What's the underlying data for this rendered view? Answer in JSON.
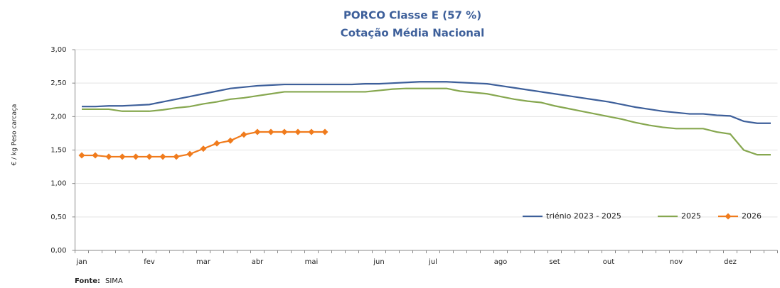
{
  "chart_data": {
    "type": "line",
    "title": "PORCO Classe E (57 %)",
    "subtitle": "Cotação Média Nacional",
    "y_label": "€ / kg Peso carcaça",
    "source_label": "Fonte:",
    "source": "SIMA",
    "categories": [
      "jan",
      null,
      null,
      null,
      null,
      "fev",
      null,
      null,
      null,
      "mar",
      null,
      null,
      null,
      "abr",
      null,
      null,
      null,
      "mai",
      null,
      null,
      null,
      null,
      "jun",
      null,
      null,
      null,
      "jul",
      null,
      null,
      null,
      null,
      "ago",
      null,
      null,
      null,
      "set",
      null,
      null,
      null,
      "out",
      null,
      null,
      null,
      null,
      "nov",
      null,
      null,
      null,
      "dez",
      null,
      null,
      null
    ],
    "ylim": [
      0,
      3
    ],
    "yticks": [
      {
        "value": 0,
        "label": "0,00"
      },
      {
        "value": 0.5,
        "label": "0,50"
      },
      {
        "value": 1,
        "label": "1,00"
      },
      {
        "value": 1.5,
        "label": "1,50"
      },
      {
        "value": 2,
        "label": "2,00"
      },
      {
        "value": 2.5,
        "label": "2,50"
      },
      {
        "value": 3,
        "label": "3,00"
      }
    ],
    "grid": true,
    "legend": "bottom-right",
    "series": [
      {
        "name": "triénio 2023 - 2025",
        "color": "#3d5f9a",
        "marker": false,
        "values": [
          2.15,
          2.15,
          2.16,
          2.16,
          2.17,
          2.18,
          2.22,
          2.26,
          2.3,
          2.34,
          2.38,
          2.42,
          2.44,
          2.46,
          2.47,
          2.48,
          2.48,
          2.48,
          2.48,
          2.48,
          2.48,
          2.49,
          2.49,
          2.5,
          2.51,
          2.52,
          2.52,
          2.52,
          2.51,
          2.5,
          2.49,
          2.46,
          2.43,
          2.4,
          2.37,
          2.34,
          2.31,
          2.28,
          2.25,
          2.22,
          2.18,
          2.14,
          2.11,
          2.08,
          2.06,
          2.04,
          2.04,
          2.02,
          2.01,
          1.93,
          1.9,
          1.9
        ]
      },
      {
        "name": "2025",
        "color": "#86a74f",
        "marker": false,
        "values": [
          2.11,
          2.11,
          2.11,
          2.08,
          2.08,
          2.08,
          2.1,
          2.13,
          2.15,
          2.19,
          2.22,
          2.26,
          2.28,
          2.31,
          2.34,
          2.37,
          2.37,
          2.37,
          2.37,
          2.37,
          2.37,
          2.37,
          2.39,
          2.41,
          2.42,
          2.42,
          2.42,
          2.42,
          2.38,
          2.36,
          2.34,
          2.3,
          2.26,
          2.23,
          2.21,
          2.16,
          2.12,
          2.08,
          2.04,
          2.0,
          1.96,
          1.91,
          1.87,
          1.84,
          1.82,
          1.82,
          1.82,
          1.77,
          1.74,
          1.5,
          1.43,
          1.43
        ]
      },
      {
        "name": "2026",
        "color": "#f07b1c",
        "marker": true,
        "values": [
          1.42,
          1.42,
          1.4,
          1.4,
          1.4,
          1.4,
          1.4,
          1.4,
          1.44,
          1.52,
          1.6,
          1.64,
          1.73,
          1.77,
          1.77,
          1.77,
          1.77,
          1.77,
          1.77,
          null,
          null,
          null,
          null,
          null,
          null,
          null,
          null,
          null,
          null,
          null,
          null,
          null,
          null,
          null,
          null,
          null,
          null,
          null,
          null,
          null,
          null,
          null,
          null,
          null,
          null,
          null,
          null,
          null,
          null,
          null,
          null,
          null
        ]
      }
    ]
  }
}
